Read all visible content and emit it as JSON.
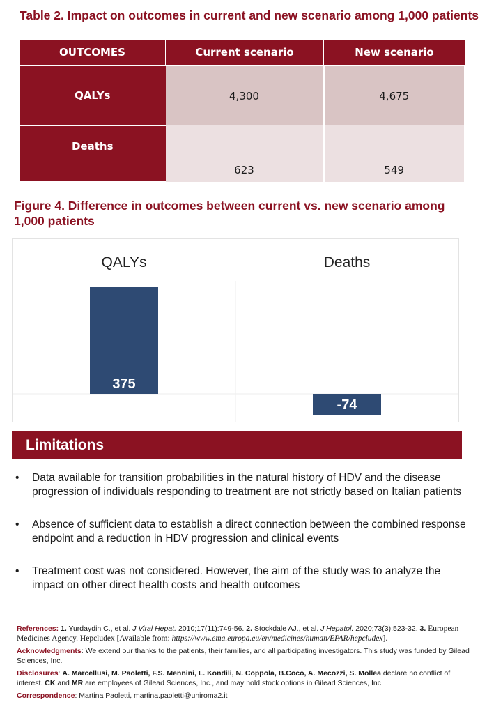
{
  "table": {
    "title": "Table 2. Impact on outcomes in current and new scenario among 1,000 patients",
    "headers": [
      "OUTCOMES",
      "Current scenario",
      "New scenario"
    ],
    "rows": [
      {
        "label": "QALYs",
        "current": "4,300",
        "new": "4,675"
      },
      {
        "label": "Deaths",
        "current": "623",
        "new": "549"
      }
    ]
  },
  "figure": {
    "title": "Figure 4. Difference in outcomes between current vs. new scenario among 1,000 patients"
  },
  "chart_data": {
    "type": "bar",
    "title": "Figure 4. Difference in outcomes between current vs. new scenario among 1,000 patients",
    "categories": [
      "QALYs",
      "Deaths"
    ],
    "values": [
      375,
      -74
    ],
    "data_labels": [
      "375",
      "-74"
    ],
    "bar_color": "#2e4a73",
    "grid": false,
    "legend": "none"
  },
  "limitations": {
    "heading": "Limitations",
    "bullet": "•",
    "items": [
      "Data available for transition probabilities in the natural history of HDV and the disease progression of individuals responding to treatment are not strictly based on Italian patients",
      "Absence of sufficient data to establish a direct connection between the combined response endpoint and a reduction in HDV progression and clinical events",
      "Treatment cost was not considered. However, the aim of the study was to analyze the impact on other direct health costs and health outcomes"
    ]
  },
  "references": {
    "label": "References:",
    "r1_num": "1.",
    "r1_text": "Yurdaydin C., et al.",
    "r1_journal": "J Viral Hepat.",
    "r1_cite": "2010;17(11):749-56.",
    "r2_num": "2.",
    "r2_text": "Stockdale AJ., et al.",
    "r2_journal": "J Hepatol.",
    "r2_cite": "2020;73(3):523-32.",
    "r3_num": "3.",
    "r3_text": "European Medicines Agency. Hepcludex [Available from:",
    "r3_url": "https://www.ema.europa.eu/en/medicines/human/EPAR/hepcludex",
    "r3_end": "]."
  },
  "acknowledgments": {
    "label": "Acknowledgments",
    "text": ": We extend our thanks to the patients, their families, and all participating investigators. This study was funded by Gilead Sciences, Inc."
  },
  "disclosures": {
    "label": "Disclosures",
    "names": "A. Marcellusi, M. Paoletti, F.S. Mennini, L. Kondili, N. Coppola, B.Coco, A. Mecozzi, S. Mollea",
    "text1": "declare no conflict of interest.",
    "ck": "CK",
    "and": "and",
    "mr": "MR",
    "text2": "are employees of Gilead Sciences, Inc., and may hold stock options in Gilead Sciences, Inc."
  },
  "correspondence": {
    "label": "Correspondence",
    "text": ": Martina Paoletti, martina.paoletti@uniroma2.it"
  }
}
